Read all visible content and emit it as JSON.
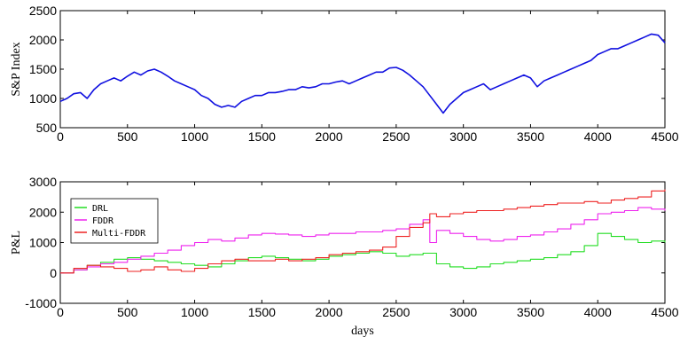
{
  "chart_data": [
    {
      "type": "line",
      "xlabel": "",
      "ylabel": "S&P Index",
      "xlim": [
        0,
        4500
      ],
      "ylim": [
        500,
        2500
      ],
      "xticks": [
        0,
        500,
        1000,
        1500,
        2000,
        2500,
        3000,
        3500,
        4000,
        4500
      ],
      "yticks": [
        500,
        1000,
        1500,
        2000,
        2500
      ],
      "grid": false,
      "series": [
        {
          "color": "#1010e0",
          "x": [
            0,
            50,
            100,
            150,
            200,
            250,
            300,
            350,
            400,
            450,
            500,
            550,
            600,
            650,
            700,
            750,
            800,
            850,
            900,
            950,
            1000,
            1050,
            1100,
            1150,
            1200,
            1250,
            1300,
            1350,
            1400,
            1450,
            1500,
            1550,
            1600,
            1650,
            1700,
            1750,
            1800,
            1850,
            1900,
            1950,
            2000,
            2050,
            2100,
            2150,
            2200,
            2250,
            2300,
            2350,
            2400,
            2450,
            2500,
            2550,
            2600,
            2650,
            2700,
            2750,
            2800,
            2850,
            2900,
            2950,
            3000,
            3050,
            3100,
            3150,
            3200,
            3250,
            3300,
            3350,
            3400,
            3450,
            3500,
            3550,
            3600,
            3650,
            3700,
            3750,
            3800,
            3850,
            3900,
            3950,
            4000,
            4050,
            4100,
            4150,
            4200,
            4250,
            4300,
            4350,
            4400,
            4450,
            4500
          ],
          "values": [
            950,
            1000,
            1080,
            1100,
            1000,
            1150,
            1250,
            1300,
            1350,
            1300,
            1380,
            1450,
            1400,
            1470,
            1500,
            1450,
            1380,
            1300,
            1250,
            1200,
            1150,
            1050,
            1000,
            900,
            850,
            880,
            850,
            950,
            1000,
            1050,
            1050,
            1100,
            1100,
            1120,
            1150,
            1150,
            1200,
            1180,
            1200,
            1250,
            1250,
            1280,
            1300,
            1250,
            1300,
            1350,
            1400,
            1450,
            1450,
            1520,
            1530,
            1480,
            1400,
            1300,
            1200,
            1050,
            900,
            750,
            900,
            1000,
            1100,
            1150,
            1200,
            1250,
            1150,
            1200,
            1250,
            1300,
            1350,
            1400,
            1350,
            1200,
            1300,
            1350,
            1400,
            1450,
            1500,
            1550,
            1600,
            1650,
            1750,
            1800,
            1850,
            1850,
            1900,
            1950,
            2000,
            2050,
            2100,
            2080,
            1950
          ]
        }
      ]
    },
    {
      "type": "line",
      "xlabel": "days",
      "ylabel": "P&L",
      "xlim": [
        0,
        4500
      ],
      "ylim": [
        -1000,
        3000
      ],
      "xticks": [
        0,
        500,
        1000,
        1500,
        2000,
        2500,
        3000,
        3500,
        4000,
        4500
      ],
      "yticks": [
        -1000,
        0,
        1000,
        2000,
        3000
      ],
      "grid": false,
      "legend": "top-left",
      "series": [
        {
          "name": "DRL",
          "color": "#22dd22",
          "x": [
            0,
            100,
            200,
            300,
            400,
            500,
            600,
            700,
            800,
            900,
            1000,
            1100,
            1200,
            1300,
            1400,
            1500,
            1600,
            1700,
            1800,
            1900,
            2000,
            2100,
            2200,
            2300,
            2400,
            2500,
            2600,
            2700,
            2800,
            2900,
            3000,
            3100,
            3200,
            3300,
            3400,
            3500,
            3600,
            3700,
            3800,
            3900,
            4000,
            4100,
            4200,
            4300,
            4400,
            4500
          ],
          "values": [
            0,
            100,
            250,
            350,
            450,
            500,
            450,
            400,
            350,
            300,
            250,
            200,
            300,
            400,
            500,
            550,
            500,
            450,
            400,
            450,
            550,
            600,
            650,
            700,
            650,
            550,
            600,
            650,
            300,
            200,
            150,
            200,
            300,
            350,
            400,
            450,
            500,
            600,
            700,
            900,
            1300,
            1200,
            1100,
            1000,
            1050,
            1000
          ]
        },
        {
          "name": "FDDR",
          "color": "#ee22ee",
          "x": [
            0,
            100,
            200,
            300,
            400,
            500,
            600,
            700,
            800,
            900,
            1000,
            1100,
            1200,
            1300,
            1400,
            1500,
            1600,
            1700,
            1800,
            1900,
            2000,
            2100,
            2200,
            2300,
            2400,
            2500,
            2600,
            2700,
            2750,
            2800,
            2900,
            3000,
            3100,
            3200,
            3300,
            3400,
            3500,
            3600,
            3700,
            3800,
            3900,
            4000,
            4100,
            4200,
            4300,
            4400,
            4500
          ],
          "values": [
            0,
            100,
            200,
            300,
            350,
            450,
            550,
            650,
            750,
            900,
            1000,
            1100,
            1050,
            1150,
            1250,
            1300,
            1280,
            1250,
            1200,
            1250,
            1300,
            1300,
            1350,
            1350,
            1400,
            1450,
            1600,
            1750,
            1000,
            1400,
            1300,
            1200,
            1100,
            1050,
            1100,
            1200,
            1250,
            1350,
            1450,
            1600,
            1750,
            1950,
            2000,
            2050,
            2150,
            2100,
            2050
          ]
        },
        {
          "name": "Multi-FDDR",
          "color": "#ee2222",
          "x": [
            0,
            100,
            200,
            300,
            400,
            500,
            600,
            700,
            800,
            900,
            1000,
            1100,
            1200,
            1300,
            1400,
            1500,
            1600,
            1700,
            1800,
            1900,
            2000,
            2100,
            2200,
            2300,
            2400,
            2500,
            2600,
            2700,
            2750,
            2800,
            2900,
            3000,
            3100,
            3200,
            3300,
            3400,
            3500,
            3600,
            3700,
            3800,
            3900,
            4000,
            4100,
            4200,
            4300,
            4400,
            4500
          ],
          "values": [
            0,
            150,
            250,
            200,
            150,
            50,
            100,
            200,
            100,
            50,
            150,
            300,
            400,
            450,
            400,
            400,
            450,
            400,
            450,
            500,
            600,
            650,
            700,
            750,
            850,
            1200,
            1500,
            1650,
            1950,
            1850,
            1950,
            2000,
            2050,
            2050,
            2100,
            2150,
            2200,
            2250,
            2300,
            2300,
            2350,
            2300,
            2400,
            2450,
            2500,
            2700,
            2750
          ]
        }
      ]
    }
  ]
}
